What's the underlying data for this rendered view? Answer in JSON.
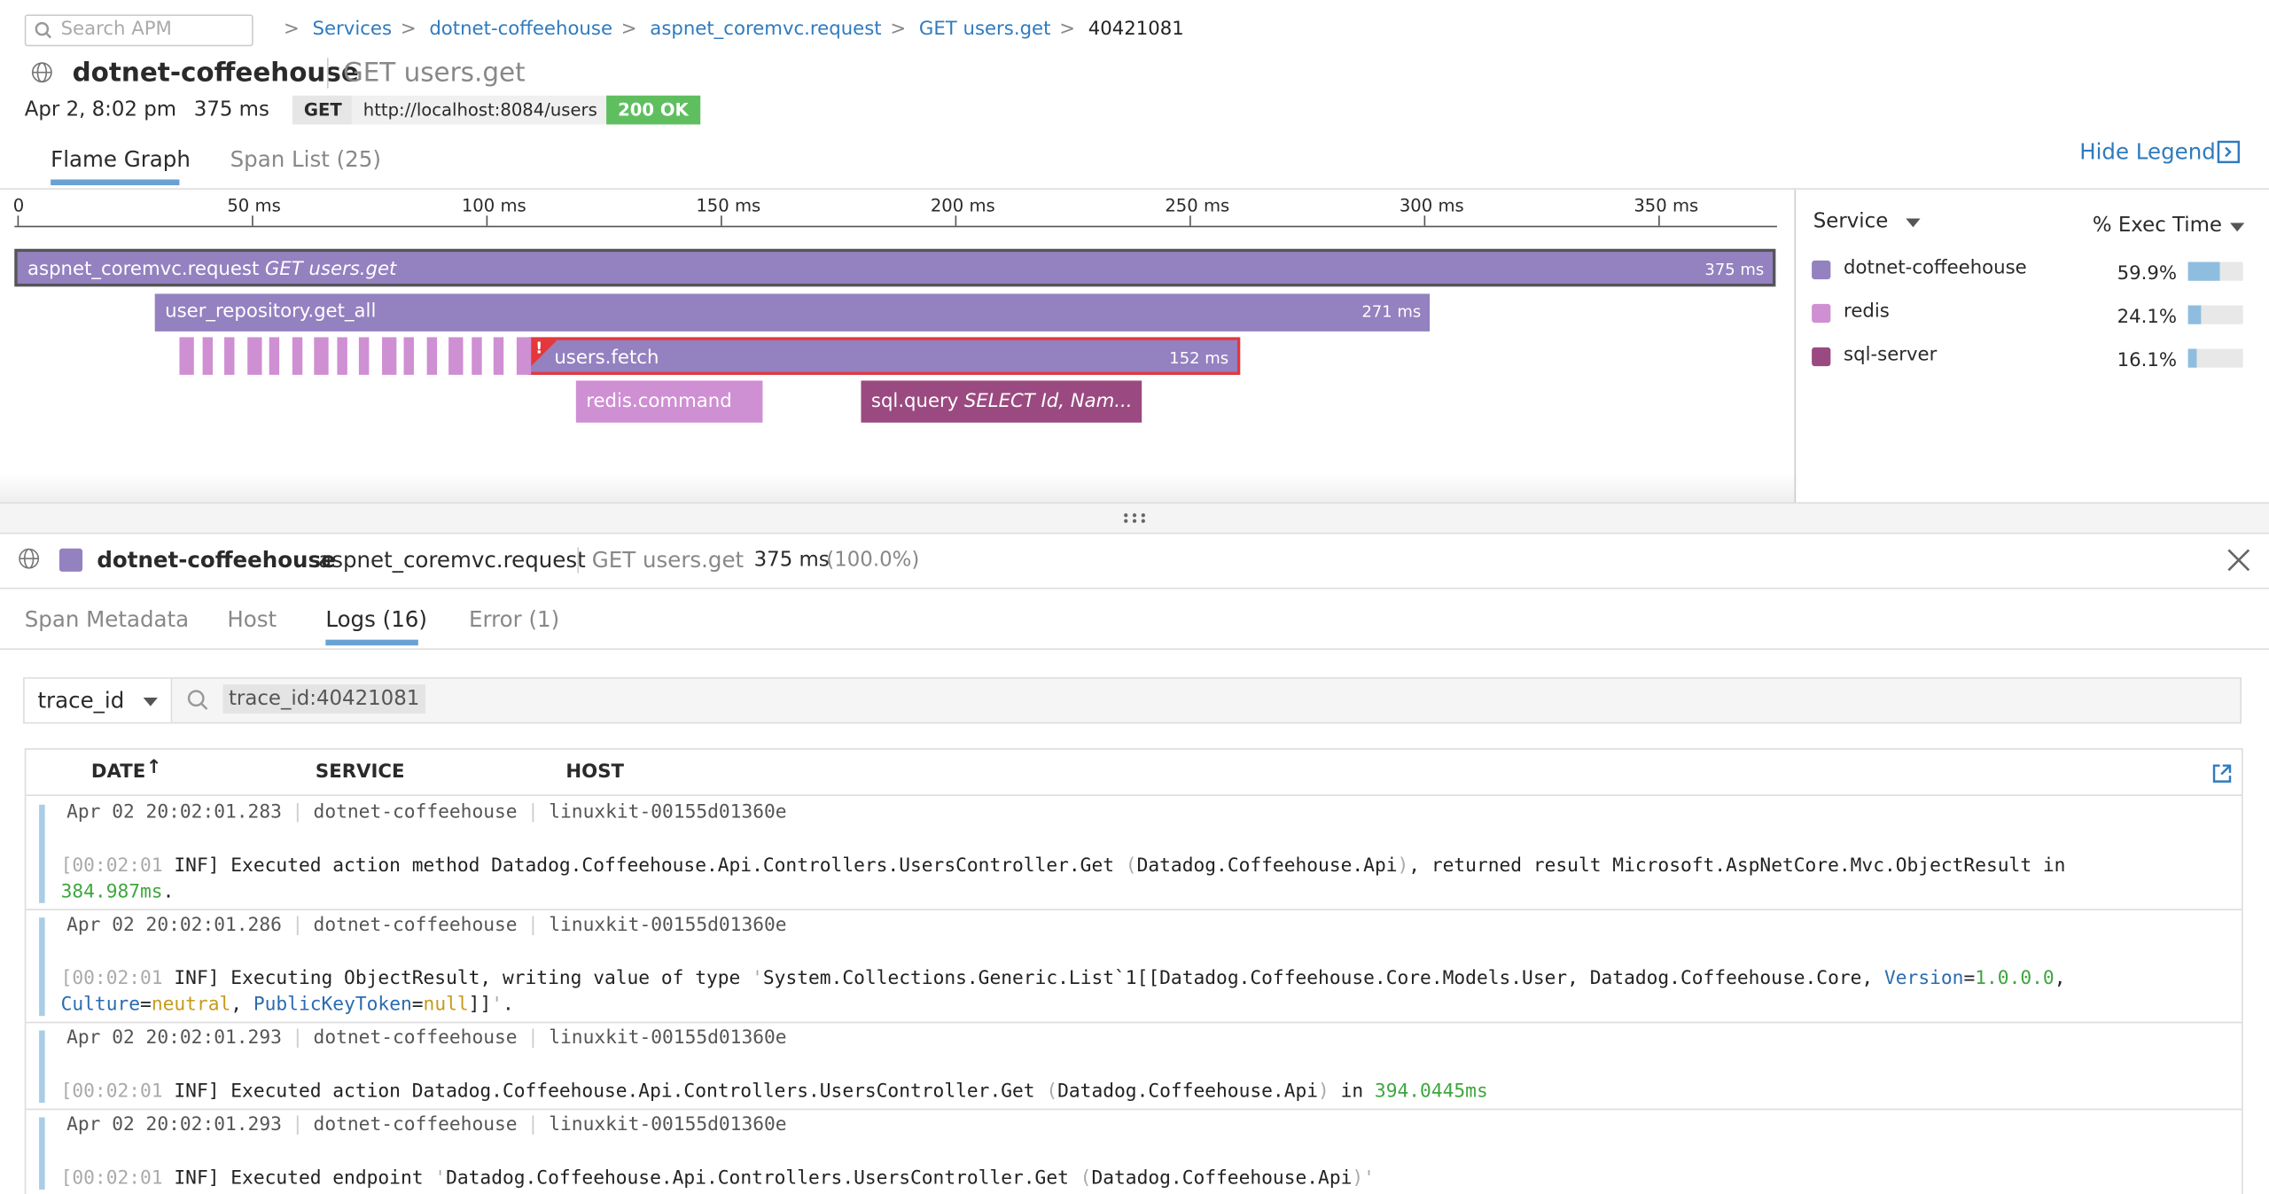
{
  "search_placeholder": "Search APM",
  "breadcrumbs": [
    "Services",
    "dotnet-coffeehouse",
    "aspnet_coremvc.request",
    "GET users.get",
    "40421081"
  ],
  "header": {
    "service": "dotnet-coffeehouse",
    "resource": "GET users.get",
    "date": "Apr 2, 8:02 pm",
    "duration": "375 ms",
    "method": "GET",
    "url": "http://localhost:8084/users",
    "status": "200 OK"
  },
  "tabs": [
    "Flame Graph",
    "Span List (25)"
  ],
  "hide_legend": "Hide Legend",
  "flame": {
    "axis_labels": [
      "0",
      "50 ms",
      "100 ms",
      "150 ms",
      "200 ms",
      "250 ms",
      "300 ms",
      "350 ms"
    ],
    "spans": [
      {
        "name": "aspnet_coremvc.request",
        "resource": "GET users.get",
        "duration": "375 ms"
      },
      {
        "name": "user_repository.get_all",
        "duration": "271 ms"
      },
      {
        "name": "users.fetch",
        "duration": "152 ms",
        "error_icon": "!"
      },
      {
        "name": "redis.command"
      },
      {
        "name": "sql.query",
        "resource": "SELECT Id, Nam..."
      }
    ]
  },
  "legend": {
    "group_by": "Service",
    "metric": "% Exec Time",
    "items": [
      {
        "name": "dotnet-coffeehouse",
        "color": "#9381c0",
        "pct": "59.9%"
      },
      {
        "name": "redis",
        "color": "#cf8fd3",
        "pct": "24.1%"
      },
      {
        "name": "sql-server",
        "color": "#9a4a80",
        "pct": "16.1%"
      }
    ]
  },
  "span_detail": {
    "service": "dotnet-coffeehouse",
    "operation": "aspnet_coremvc.request",
    "resource": "GET users.get",
    "duration": "375 ms",
    "percent": "(100.0%)"
  },
  "detail_tabs": [
    "Span Metadata",
    "Host",
    "Logs (16)",
    "Error (1)"
  ],
  "log_filter": {
    "facet": "trace_id",
    "query": "trace_id:40421081"
  },
  "log_table": {
    "columns": [
      "DATE",
      "SERVICE",
      "HOST"
    ],
    "sort_icon": "↑",
    "rows": [
      {
        "date": "Apr 02 20:02:01.283",
        "service": "dotnet-coffeehouse",
        "host": "linuxkit-00155d01360e",
        "message": [
          {
            "text": "[",
            "style": "dim"
          },
          {
            "text": "00:02:01",
            "style": "dim"
          },
          {
            "text": " INF] Executed action method Datadog.Coffeehouse.Api.Controllers.UsersController.Get ",
            "style": "plain"
          },
          {
            "text": "(",
            "style": "dim"
          },
          {
            "text": "Datadog.Coffeehouse.Api",
            "style": "plain"
          },
          {
            "text": ")",
            "style": "dim"
          },
          {
            "text": ", returned result Microsoft.AspNetCore.Mvc.ObjectResult in ",
            "style": "plain"
          },
          {
            "text": "384.987ms",
            "style": "green"
          },
          {
            "text": ".",
            "style": "plain"
          }
        ]
      },
      {
        "date": "Apr 02 20:02:01.286",
        "service": "dotnet-coffeehouse",
        "host": "linuxkit-00155d01360e",
        "message": [
          {
            "text": "[",
            "style": "dim"
          },
          {
            "text": "00:02:01",
            "style": "dim"
          },
          {
            "text": " INF] Executing ObjectResult, writing value of type ",
            "style": "plain"
          },
          {
            "text": "'",
            "style": "dim"
          },
          {
            "text": "System.Collections.Generic.List`1[[Datadog.Coffeehouse.Core.Models.User, Datadog.Coffeehouse.Core, ",
            "style": "plain"
          },
          {
            "text": "Version",
            "style": "blue"
          },
          {
            "text": "=",
            "style": "plain"
          },
          {
            "text": "1.0.0.0",
            "style": "green"
          },
          {
            "text": ", ",
            "style": "plain"
          },
          {
            "text": "Culture",
            "style": "blue"
          },
          {
            "text": "=",
            "style": "plain"
          },
          {
            "text": "neutral",
            "style": "orange"
          },
          {
            "text": ", ",
            "style": "plain"
          },
          {
            "text": "PublicKeyToken",
            "style": "blue"
          },
          {
            "text": "=",
            "style": "plain"
          },
          {
            "text": "null",
            "style": "orange"
          },
          {
            "text": "]]",
            "style": "plain"
          },
          {
            "text": "'",
            "style": "dim"
          },
          {
            "text": ".",
            "style": "plain"
          }
        ]
      },
      {
        "date": "Apr 02 20:02:01.293",
        "service": "dotnet-coffeehouse",
        "host": "linuxkit-00155d01360e",
        "message": [
          {
            "text": "[",
            "style": "dim"
          },
          {
            "text": "00:02:01",
            "style": "dim"
          },
          {
            "text": " INF] Executed action Datadog.Coffeehouse.Api.Controllers.UsersController.Get ",
            "style": "plain"
          },
          {
            "text": "(",
            "style": "dim"
          },
          {
            "text": "Datadog.Coffeehouse.Api",
            "style": "plain"
          },
          {
            "text": ")",
            "style": "dim"
          },
          {
            "text": " in ",
            "style": "plain"
          },
          {
            "text": "394.0445ms",
            "style": "green"
          }
        ]
      },
      {
        "date": "Apr 02 20:02:01.293",
        "service": "dotnet-coffeehouse",
        "host": "linuxkit-00155d01360e",
        "message": [
          {
            "text": "[",
            "style": "dim"
          },
          {
            "text": "00:02:01",
            "style": "dim"
          },
          {
            "text": " INF] Executed endpoint ",
            "style": "plain"
          },
          {
            "text": "'",
            "style": "dim"
          },
          {
            "text": "Datadog.Coffeehouse.Api.Controllers.UsersController.Get ",
            "style": "plain"
          },
          {
            "text": "(",
            "style": "dim"
          },
          {
            "text": "Datadog.Coffeehouse.Api",
            "style": "plain"
          },
          {
            "text": ")",
            "style": "dim"
          },
          {
            "text": "'",
            "style": "dim"
          }
        ]
      }
    ]
  }
}
